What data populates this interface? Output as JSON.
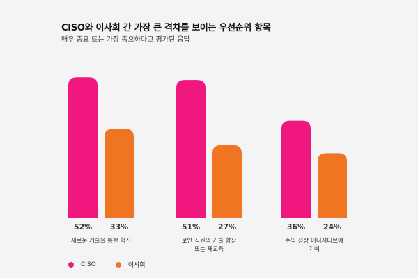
{
  "chart_data": {
    "type": "bar",
    "title": "CISO와 이사회 간 가장 큰 격차를 보이는 우선순위 항목",
    "subtitle": "매우 중요 또는 가장 중요하다고 평가된 응답",
    "categories": [
      [
        "새로운 기술을 통한 혁신"
      ],
      [
        "보안 직원의 기술 향상",
        "또는 재교육"
      ],
      [
        "수익 성장 이니셔티브에",
        "기여"
      ]
    ],
    "series": [
      {
        "name": "CISO",
        "color": "#f0177f",
        "values": [
          52,
          51,
          36
        ]
      },
      {
        "name": "이사회",
        "color": "#f07522",
        "values": [
          33,
          27,
          24
        ]
      }
    ],
    "value_suffix": "%",
    "ylim": [
      0,
      60
    ],
    "grid": false,
    "legend_position": "bottom-left"
  }
}
